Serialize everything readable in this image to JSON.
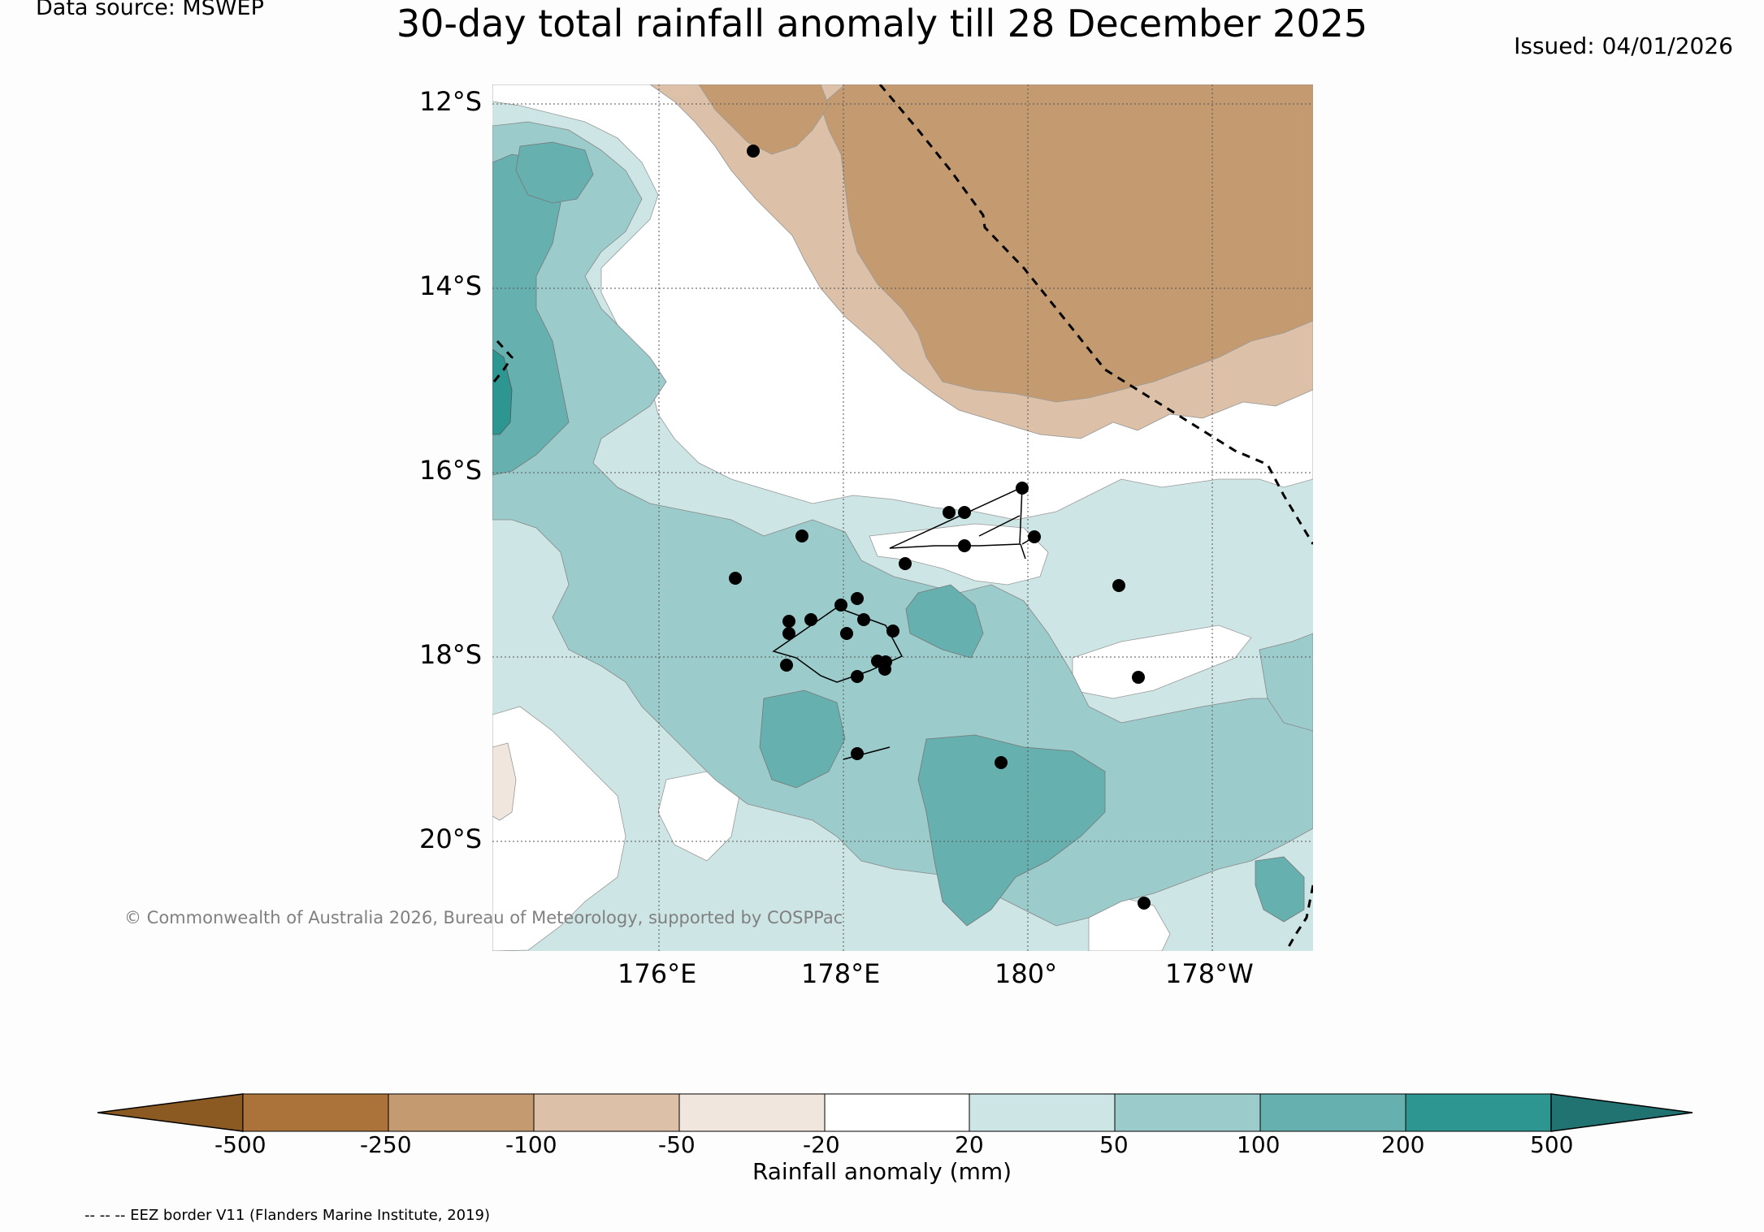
{
  "header": {
    "data_source": "Data source: MSWEP",
    "title": "30-day total rainfall anomaly till 28 December 2025",
    "issued": "Issued: 04/01/2026"
  },
  "map": {
    "lat_labels": [
      "12°S",
      "14°S",
      "16°S",
      "18°S",
      "20°S"
    ],
    "lon_labels": [
      "176°E",
      "178°E",
      "180°",
      "178°W"
    ],
    "copyright": "© Commonwealth of Australia 2026, Bureau of Meteorology, supported by COSPPac",
    "eez_note": "-- -- -- EEZ border V11 (Flanders Marine Institute, 2019)"
  },
  "colorbar": {
    "label": "Rainfall anomaly (mm)",
    "ticks": [
      "-500",
      "-250",
      "-100",
      "-50",
      "-20",
      "20",
      "50",
      "100",
      "200",
      "500"
    ],
    "colors": {
      "lt_-500": "#8b5a22",
      "-500_-250": "#ab733a",
      "-250_-100": "#c49b70",
      "-100_-50": "#dcc1a8",
      "-50_-20": "#f0e6dd",
      "-20_20": "#ffffff",
      "20_50": "#cde5e4",
      "50_100": "#9ccbcb",
      "100_200": "#66b0b0",
      "200_500": "#2e9690",
      "gt_500": "#217371"
    }
  }
}
